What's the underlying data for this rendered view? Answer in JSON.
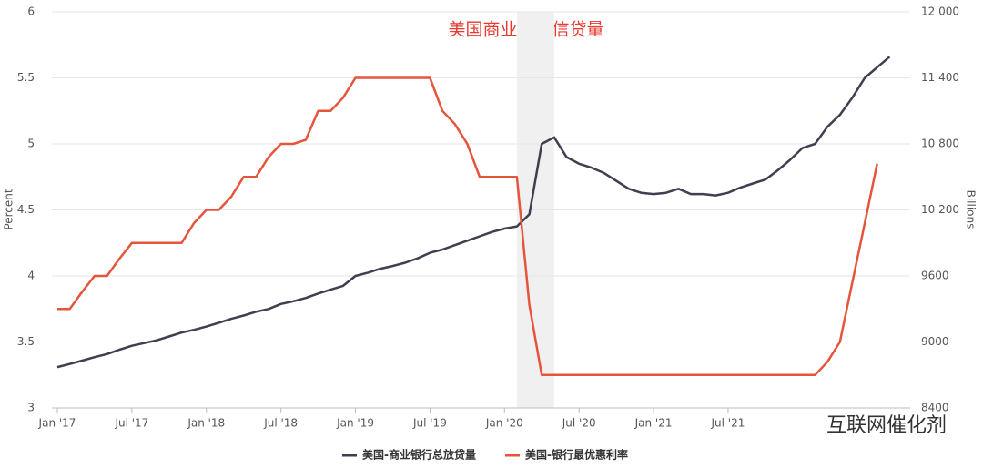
{
  "chart_data": {
    "type": "line",
    "title": "美国商业银行信贷量",
    "y_label": "Percent",
    "y2_label": "Billions",
    "watermark": "互联网催化剂",
    "x": [
      "2017-01",
      "2017-02",
      "2017-03",
      "2017-04",
      "2017-05",
      "2017-06",
      "2017-07",
      "2017-08",
      "2017-09",
      "2017-10",
      "2017-11",
      "2017-12",
      "2018-01",
      "2018-02",
      "2018-03",
      "2018-04",
      "2018-05",
      "2018-06",
      "2018-07",
      "2018-08",
      "2018-09",
      "2018-10",
      "2018-11",
      "2018-12",
      "2019-01",
      "2019-02",
      "2019-03",
      "2019-04",
      "2019-05",
      "2019-06",
      "2019-07",
      "2019-08",
      "2019-09",
      "2019-10",
      "2019-11",
      "2019-12",
      "2020-01",
      "2020-02",
      "2020-03",
      "2020-04",
      "2020-05",
      "2020-06",
      "2020-07",
      "2020-08",
      "2020-09",
      "2020-10",
      "2020-11",
      "2020-12",
      "2021-01",
      "2021-02",
      "2021-03",
      "2021-04",
      "2021-05",
      "2021-06",
      "2021-07",
      "2021-08",
      "2021-09",
      "2021-10",
      "2021-11",
      "2021-12",
      "2022-01",
      "2022-02",
      "2022-03",
      "2022-04",
      "2022-05",
      "2022-06",
      "2022-07",
      "2022-08"
    ],
    "xlim": [
      "2017-01",
      "2022-09"
    ],
    "xticks": [
      {
        "value": "2017-01",
        "label": "Jan '17"
      },
      {
        "value": "2017-07",
        "label": "Jul '17"
      },
      {
        "value": "2018-01",
        "label": "Jan '18"
      },
      {
        "value": "2018-07",
        "label": "Jul '18"
      },
      {
        "value": "2019-01",
        "label": "Jan '19"
      },
      {
        "value": "2019-07",
        "label": "Jul '19"
      },
      {
        "value": "2020-01",
        "label": "Jan '20"
      },
      {
        "value": "2020-07",
        "label": "Jul '20"
      },
      {
        "value": "2021-01",
        "label": "Jan '21"
      },
      {
        "value": "2021-07",
        "label": "Jul '21"
      }
    ],
    "shade": [
      "2020-02",
      "2020-05"
    ],
    "ylim": [
      3,
      6
    ],
    "yticks": [
      3,
      3.5,
      4,
      4.5,
      5,
      5.5,
      6
    ],
    "y2lim": [
      8400,
      12000
    ],
    "y2ticks": [
      8400,
      9000,
      9600,
      {
        "value": 10200,
        "label": "10 200"
      },
      {
        "value": 10800,
        "label": "10 800"
      },
      {
        "value": 11400,
        "label": "11 400"
      },
      {
        "value": 12000,
        "label": "12 000"
      }
    ],
    "grid": true,
    "legend": "bottom",
    "series": [
      {
        "name": "美国-商业银行总放贷量",
        "color": "#3f3f50",
        "axis": "y2",
        "values": [
          8772,
          8800,
          8830,
          8862,
          8890,
          8930,
          8965,
          8990,
          9015,
          9050,
          9085,
          9110,
          9140,
          9175,
          9210,
          9240,
          9275,
          9300,
          9345,
          9370,
          9400,
          9440,
          9475,
          9510,
          9600,
          9630,
          9665,
          9690,
          9720,
          9760,
          9810,
          9840,
          9880,
          9920,
          9960,
          10000,
          10030,
          10050,
          10160,
          10800,
          10860,
          10680,
          10620,
          10584,
          10536,
          10464,
          10392,
          10356,
          10344,
          10356,
          10392,
          10344,
          10344,
          10332,
          10356,
          10404,
          10440,
          10476,
          10560,
          10656,
          10764,
          10800,
          10956,
          11064,
          11220,
          11400,
          11496,
          11592
        ]
      },
      {
        "name": "美国-银行最优惠利率",
        "color": "#e5553c",
        "values": [
          3.75,
          3.75,
          3.88,
          4.0,
          4.0,
          4.13,
          4.25,
          4.25,
          4.25,
          4.25,
          4.25,
          4.4,
          4.5,
          4.5,
          4.6,
          4.75,
          4.75,
          4.9,
          5.0,
          5.0,
          5.03,
          5.25,
          5.25,
          5.35,
          5.5,
          5.5,
          5.5,
          5.5,
          5.5,
          5.5,
          5.5,
          5.25,
          5.15,
          5.0,
          4.75,
          4.75,
          4.75,
          4.75,
          3.78,
          3.25,
          3.25,
          3.25,
          3.25,
          3.25,
          3.25,
          3.25,
          3.25,
          3.25,
          3.25,
          3.25,
          3.25,
          3.25,
          3.25,
          3.25,
          3.25,
          3.25,
          3.25,
          3.25,
          3.25,
          3.25,
          3.25,
          3.25,
          3.35,
          3.5,
          3.95,
          4.4,
          4.85,
          null
        ]
      }
    ]
  }
}
